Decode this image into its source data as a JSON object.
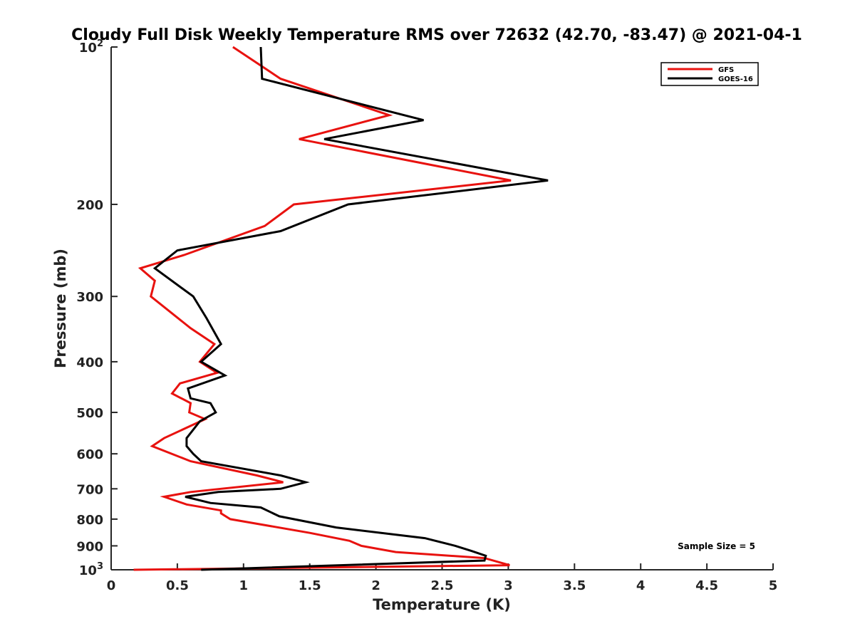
{
  "chart_data": {
    "type": "line",
    "title": "Cloudy Full Disk Weekly Temperature RMS over 72632 (42.70, -83.47) @ 2021-04-1",
    "xlabel": "Temperature (K)",
    "ylabel": "Pressure (mb)",
    "xlim": [
      0,
      5
    ],
    "ylim": [
      1000,
      100
    ],
    "y_scale": "log",
    "y_reversed": true,
    "x_ticks": [
      "0",
      "0.5",
      "1",
      "1.5",
      "2",
      "2.5",
      "3",
      "3.5",
      "4",
      "4.5",
      "5"
    ],
    "y_ticks": [
      {
        "value": 100,
        "base": "10",
        "exp": "2"
      },
      {
        "value": 200,
        "label": "200"
      },
      {
        "value": 300,
        "label": "300"
      },
      {
        "value": 400,
        "label": "400"
      },
      {
        "value": 500,
        "label": "500"
      },
      {
        "value": 600,
        "label": "600"
      },
      {
        "value": 700,
        "label": "700"
      },
      {
        "value": 800,
        "label": "800"
      },
      {
        "value": 900,
        "label": "900"
      },
      {
        "value": 1000,
        "base": "10",
        "exp": "3"
      }
    ],
    "grid": false,
    "legend_position": "top-right",
    "annotation": "Sample Size = 5",
    "series": [
      {
        "name": "GFS",
        "color": "#e8120f",
        "points": [
          [
            0.92,
            100
          ],
          [
            1.28,
            115
          ],
          [
            2.1,
            135
          ],
          [
            1.42,
            150
          ],
          [
            3.02,
            180
          ],
          [
            1.38,
            200
          ],
          [
            1.16,
            220
          ],
          [
            0.55,
            250
          ],
          [
            0.22,
            265
          ],
          [
            0.33,
            280
          ],
          [
            0.3,
            300
          ],
          [
            0.6,
            345
          ],
          [
            0.78,
            370
          ],
          [
            0.67,
            400
          ],
          [
            0.8,
            420
          ],
          [
            0.52,
            440
          ],
          [
            0.46,
            460
          ],
          [
            0.6,
            480
          ],
          [
            0.59,
            500
          ],
          [
            0.71,
            515
          ],
          [
            0.4,
            560
          ],
          [
            0.31,
            580
          ],
          [
            0.6,
            620
          ],
          [
            1.1,
            660
          ],
          [
            1.3,
            680
          ],
          [
            0.6,
            710
          ],
          [
            0.4,
            725
          ],
          [
            0.57,
            750
          ],
          [
            0.83,
            770
          ],
          [
            0.83,
            780
          ],
          [
            0.9,
            800
          ],
          [
            1.5,
            850
          ],
          [
            1.8,
            880
          ],
          [
            1.89,
            900
          ],
          [
            2.15,
            925
          ],
          [
            2.82,
            950
          ],
          [
            3.01,
            980
          ],
          [
            0.17,
            1000
          ]
        ]
      },
      {
        "name": "GOES-16",
        "color": "#000000",
        "points": [
          [
            1.13,
            100
          ],
          [
            1.14,
            115
          ],
          [
            2.36,
            138
          ],
          [
            1.61,
            150
          ],
          [
            3.3,
            180
          ],
          [
            1.79,
            200
          ],
          [
            1.28,
            225
          ],
          [
            0.5,
            245
          ],
          [
            0.33,
            265
          ],
          [
            0.62,
            300
          ],
          [
            0.72,
            330
          ],
          [
            0.83,
            370
          ],
          [
            0.68,
            400
          ],
          [
            0.86,
            425
          ],
          [
            0.58,
            450
          ],
          [
            0.6,
            470
          ],
          [
            0.75,
            480
          ],
          [
            0.79,
            500
          ],
          [
            0.67,
            520
          ],
          [
            0.57,
            560
          ],
          [
            0.57,
            580
          ],
          [
            0.62,
            600
          ],
          [
            0.68,
            620
          ],
          [
            1.28,
            660
          ],
          [
            1.47,
            680
          ],
          [
            1.28,
            700
          ],
          [
            0.81,
            710
          ],
          [
            0.56,
            725
          ],
          [
            0.75,
            745
          ],
          [
            1.13,
            760
          ],
          [
            1.27,
            790
          ],
          [
            1.7,
            830
          ],
          [
            2.37,
            870
          ],
          [
            2.6,
            900
          ],
          [
            2.72,
            920
          ],
          [
            2.83,
            940
          ],
          [
            2.82,
            960
          ],
          [
            0.68,
            1000
          ]
        ]
      }
    ]
  }
}
